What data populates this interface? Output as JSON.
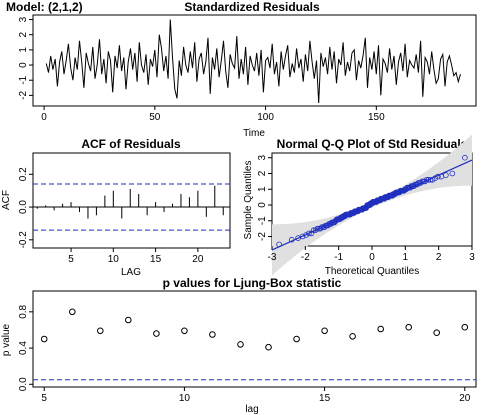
{
  "chart_data": [
    {
      "type": "line",
      "label": "Model: (2,1,2)",
      "title": "Standardized Residuals",
      "xlabel": "Time",
      "ylabel": "",
      "xlim": [
        -5,
        195
      ],
      "ylim": [
        -2.7,
        3.3
      ],
      "xticks": [
        "0",
        "50",
        "100",
        "150"
      ],
      "yticks": [
        "-2",
        "-1",
        "0",
        "1",
        "2",
        "3"
      ],
      "y": [
        0.1,
        -0.5,
        0.6,
        -0.3,
        0.4,
        -1.4,
        0.2,
        0.9,
        -0.6,
        0.3,
        1.4,
        -0.2,
        -1.0,
        0.5,
        -0.3,
        1.6,
        0.2,
        -1.5,
        0.8,
        0.1,
        -0.4,
        1.2,
        -0.9,
        0.0,
        1.7,
        -0.6,
        0.4,
        -1.2,
        0.9,
        0.3,
        -1.8,
        0.6,
        -0.2,
        1.3,
        -0.4,
        0.5,
        -1.6,
        0.2,
        1.1,
        -0.3,
        0.8,
        -1.1,
        1.5,
        0.0,
        -0.5,
        0.7,
        -1.3,
        0.4,
        -0.1,
        1.0,
        -0.8,
        2.0,
        1.1,
        -0.4,
        0.6,
        -0.9,
        3.0,
        0.5,
        -1.6,
        -2.2,
        0.3,
        -0.7,
        1.2,
        0.0,
        -0.5,
        0.9,
        -0.2,
        1.5,
        -1.1,
        0.4,
        0.8,
        -0.6,
        0.2,
        1.8,
        -1.9,
        0.5,
        -0.3,
        1.1,
        -0.8,
        0.3,
        1.6,
        -0.4,
        -1.5,
        0.7,
        0.1,
        -0.2,
        1.9,
        -0.9,
        0.4,
        -0.6,
        1.2,
        -1.3,
        0.6,
        0.0,
        -0.4,
        0.8,
        -0.7,
        1.0,
        -1.8,
        0.3,
        0.5,
        -0.2,
        1.4,
        -0.6,
        0.2,
        -1.4,
        0.9,
        -0.3,
        0.6,
        1.3,
        -0.8,
        0.1,
        -0.5,
        1.1,
        -0.2,
        0.4,
        -1.1,
        0.7,
        -0.4,
        1.6,
        0.2,
        -0.9,
        0.3,
        -2.5,
        0.8,
        -0.1,
        0.5,
        -0.6,
        1.2,
        -0.3,
        0.9,
        -1.2,
        0.4,
        0.0,
        1.5,
        -0.7,
        0.2,
        -0.4,
        0.8,
        1.0,
        -1.0,
        0.3,
        -0.2,
        0.6,
        1.8,
        -1.5,
        0.5,
        -0.3,
        0.9,
        -0.6,
        1.3,
        -2.0,
        0.4,
        0.1,
        -0.5,
        1.1,
        -0.3,
        0.6,
        -1.3,
        0.2,
        0.8,
        -0.4,
        1.4,
        -0.8,
        0.3,
        0.0,
        -0.2,
        0.7,
        -0.5,
        1.6,
        -2.1,
        0.5,
        0.2,
        -0.6,
        0.9,
        -0.3,
        -1.2,
        -0.9,
        0.4,
        0.7,
        -1.4,
        0.2,
        0.6,
        0.0,
        -0.7,
        -0.5,
        -1.1,
        -0.6
      ]
    },
    {
      "type": "bar",
      "title": "ACF of Residuals",
      "xlabel": "LAG",
      "ylabel": "ACF",
      "xlim": [
        0.5,
        23.8
      ],
      "ylim": [
        -0.25,
        0.33
      ],
      "xticks": [
        "5",
        "10",
        "15",
        "20"
      ],
      "yticks": [
        "-0.2",
        "0.0",
        "0.2"
      ],
      "x": [
        1,
        2,
        3,
        4,
        5,
        6,
        7,
        8,
        9,
        10,
        11,
        12,
        13,
        14,
        15,
        16,
        17,
        18,
        19,
        20,
        21,
        22,
        23
      ],
      "values": [
        -0.01,
        0.01,
        -0.02,
        0.02,
        0.03,
        -0.03,
        -0.07,
        -0.05,
        0.07,
        0.1,
        -0.07,
        0.11,
        0.08,
        -0.05,
        0.03,
        -0.03,
        0.02,
        0.08,
        0.06,
        0.1,
        -0.06,
        0.13,
        -0.05
      ],
      "ci": 0.141
    },
    {
      "type": "scatter",
      "title": "Normal Q-Q Plot of Std Residuals",
      "xlabel": "Theoretical Quantiles",
      "ylabel": "Sample Quantiles",
      "xlim": [
        -3,
        3
      ],
      "ylim": [
        -2.6,
        3.3
      ],
      "xticks": [
        "-3",
        "-2",
        "-1",
        "0",
        "1",
        "2",
        "3"
      ],
      "yticks": [
        "-2",
        "-1",
        "0",
        "1",
        "2",
        "3"
      ],
      "line_slope": 0.95,
      "line_intercept": 0.0
    },
    {
      "type": "scatter",
      "title": "p values for Ljung-Box statistic",
      "xlabel": "lag",
      "ylabel": "p value",
      "xlim": [
        4.6,
        20.4
      ],
      "ylim": [
        -0.03,
        1.03
      ],
      "xticks": [
        "5",
        "10",
        "15",
        "20"
      ],
      "yticks": [
        "0.0",
        "0.4",
        "0.8"
      ],
      "x": [
        5,
        6,
        7,
        8,
        9,
        10,
        11,
        12,
        13,
        14,
        15,
        16,
        17,
        18,
        19,
        20
      ],
      "y": [
        0.5,
        0.8,
        0.59,
        0.71,
        0.56,
        0.59,
        0.55,
        0.44,
        0.41,
        0.5,
        0.59,
        0.53,
        0.61,
        0.63,
        0.57,
        0.63
      ],
      "threshold": 0.05
    }
  ]
}
